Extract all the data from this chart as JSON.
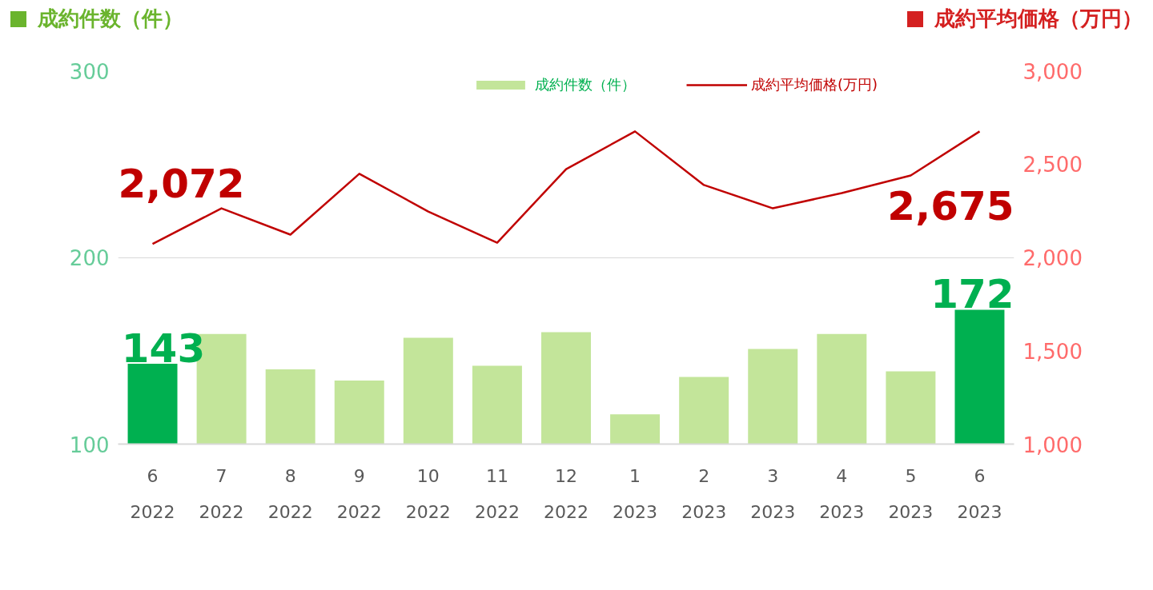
{
  "chart_data": {
    "type": "bar",
    "ylabel": "成約件数（件）",
    "y2label": "成約平均価格（万円）",
    "categories": [
      "6\n2022",
      "7\n2022",
      "8\n2022",
      "9\n2022",
      "10\n2022",
      "11\n2022",
      "12\n2022",
      "1\n2023",
      "2\n2023",
      "3\n2023",
      "4\n2023",
      "5\n2023",
      "6\n2023"
    ],
    "ylim": [
      100,
      300
    ],
    "yticks": [
      100,
      200,
      300
    ],
    "y2lim": [
      1000,
      3000
    ],
    "y2ticks": [
      {
        "value": 1000,
        "label": "1,000"
      },
      {
        "value": 1500,
        "label": "1,500"
      },
      {
        "value": 2000,
        "label": "2,000"
      },
      {
        "value": 2500,
        "label": "2,500"
      },
      {
        "value": 3000,
        "label": "3,000"
      }
    ],
    "grid": "y",
    "legend": "top",
    "series": [
      {
        "name": "成約件数（件）",
        "color": "#c3e59a",
        "colors": [
          "#00b050",
          "#c3e59a",
          "#c3e59a",
          "#c3e59a",
          "#c3e59a",
          "#c3e59a",
          "#c3e59a",
          "#c3e59a",
          "#c3e59a",
          "#c3e59a",
          "#c3e59a",
          "#c3e59a",
          "#00b050"
        ],
        "values": [
          143,
          159,
          140,
          134,
          157,
          142,
          160,
          116,
          136,
          151,
          159,
          139,
          172
        ],
        "value_labels": [
          "143",
          null,
          null,
          null,
          null,
          null,
          null,
          null,
          null,
          null,
          null,
          null,
          "172"
        ]
      },
      {
        "name": "成約平均価格(万円)",
        "type": "line",
        "axis": "y2",
        "color": "#c00000",
        "values": [
          2072,
          2263,
          2122,
          2448,
          2246,
          2079,
          2473,
          2675,
          2388,
          2263,
          2345,
          2439,
          2675
        ],
        "value_labels": [
          "2,072",
          null,
          null,
          null,
          null,
          null,
          null,
          null,
          null,
          null,
          null,
          null,
          "2,675"
        ]
      }
    ]
  }
}
